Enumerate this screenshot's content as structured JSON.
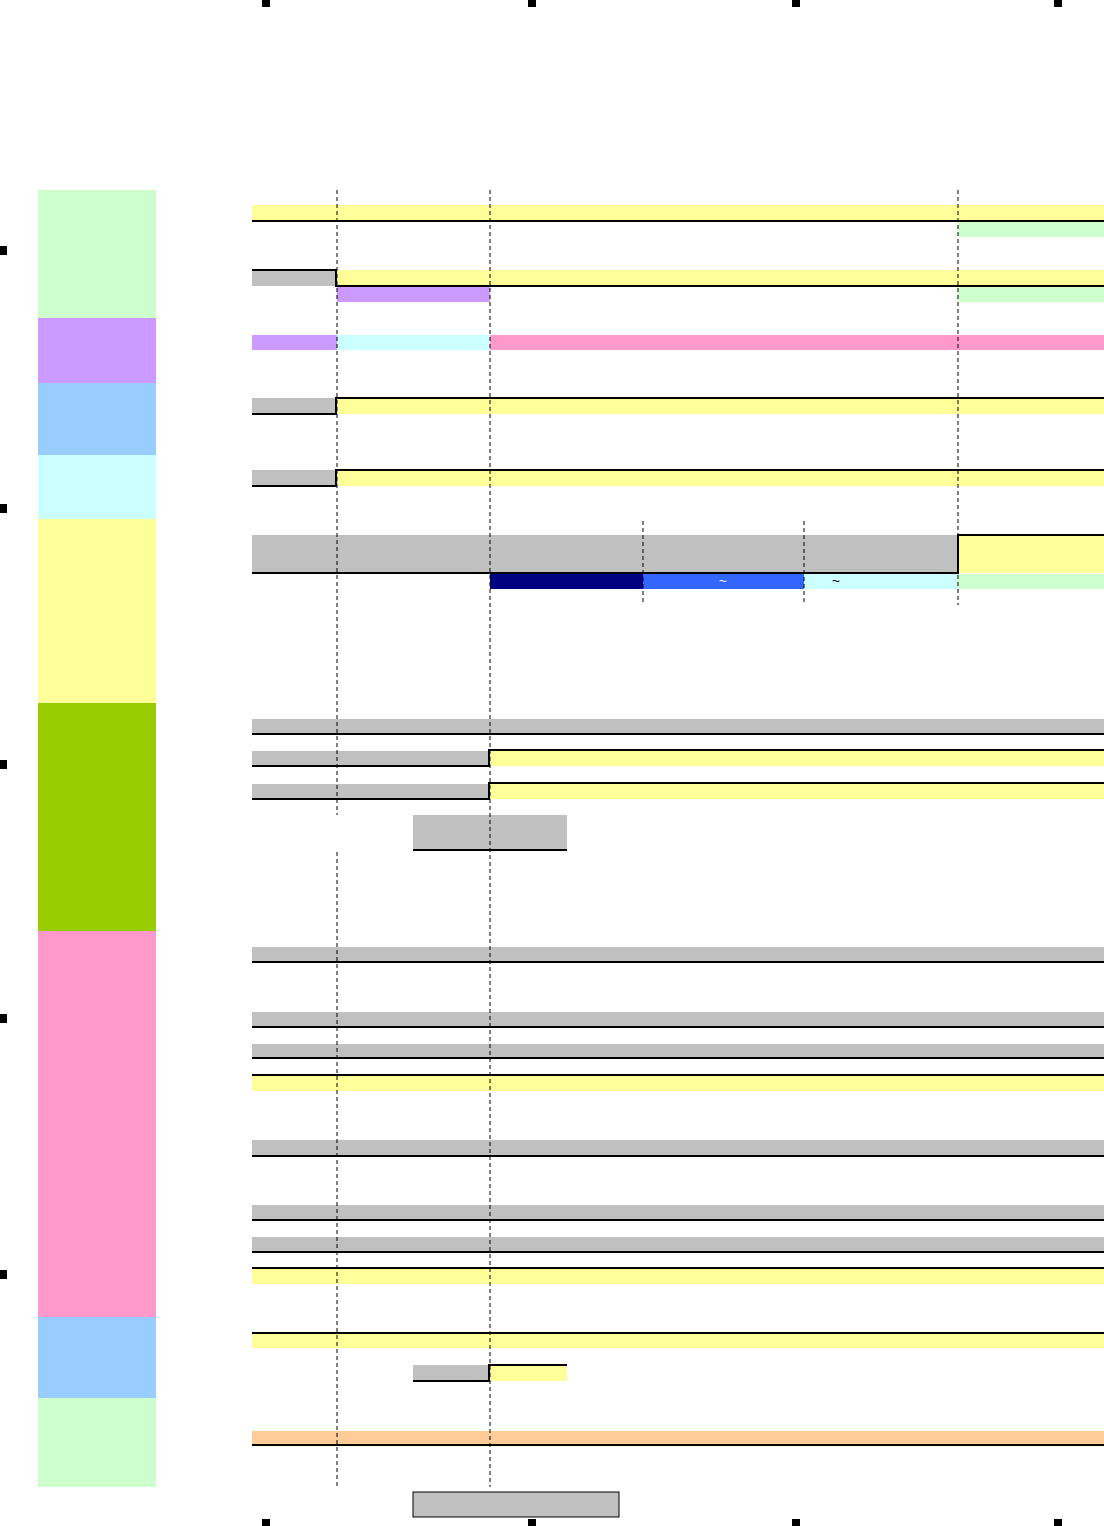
{
  "markers": [
    "~",
    "~"
  ]
}
